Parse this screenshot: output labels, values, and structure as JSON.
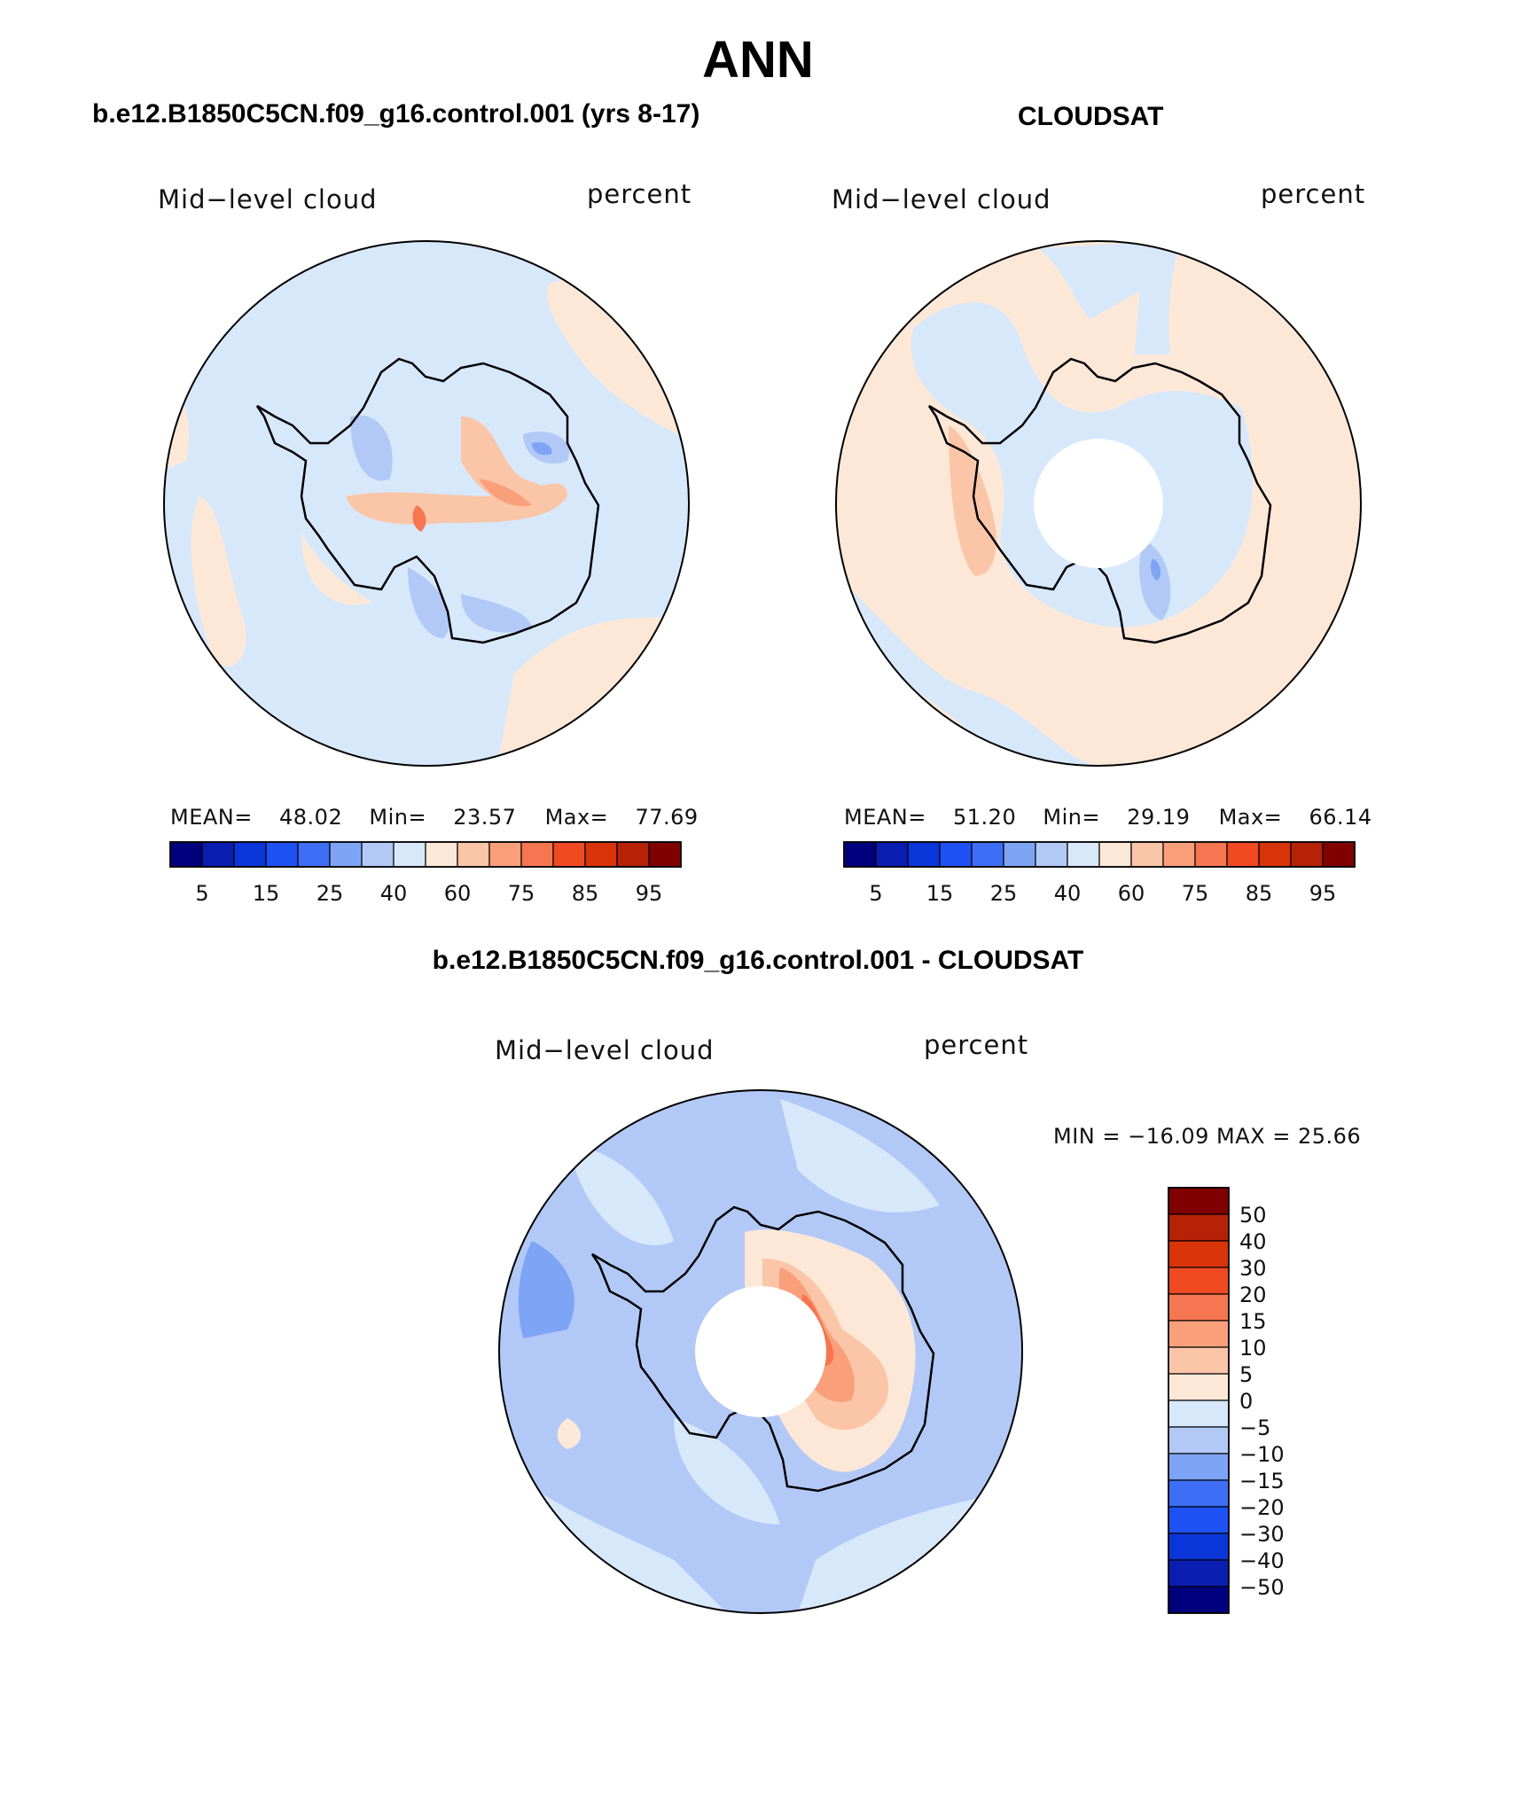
{
  "title": "ANN",
  "colors": {
    "abs_levels": [
      "#00007f",
      "#0a1db1",
      "#0a36d9",
      "#1e52f5",
      "#3d6ef5",
      "#7ea4f5",
      "#b2c9f7",
      "#d7e8fb",
      "#fde8d7",
      "#fbc5a8",
      "#f9a07b",
      "#f57650",
      "#f04a23",
      "#d93309",
      "#b52206",
      "#800000"
    ],
    "diff_levels": [
      "#00007f",
      "#0a1db1",
      "#0a36d9",
      "#1e52f5",
      "#3d6ef5",
      "#7ea4f5",
      "#b2c9f7",
      "#d7e8fb",
      "#fde8d7",
      "#fbc5a8",
      "#f9a07b",
      "#f57650",
      "#f04a23",
      "#d93309",
      "#b52206",
      "#800000"
    ],
    "land_outline": "#000000"
  },
  "panels": [
    {
      "name": "model",
      "title": "b.e12.B1850C5CN.f09_g16.control.001 (yrs 8-17)",
      "variable": "Mid−level cloud",
      "units": "percent",
      "mean_label": "MEAN=",
      "mean": "48.02",
      "min_label": "Min=",
      "min": "23.57",
      "max_label": "Max=",
      "max": "77.69",
      "colorbar_labels": [
        "5",
        "15",
        "25",
        "40",
        "60",
        "75",
        "85",
        "95"
      ]
    },
    {
      "name": "obs",
      "title": "CLOUDSAT",
      "variable": "Mid−level cloud",
      "units": "percent",
      "mean_label": "MEAN=",
      "mean": "51.20",
      "min_label": "Min=",
      "min": "29.19",
      "max_label": "Max=",
      "max": "66.14",
      "colorbar_labels": [
        "5",
        "15",
        "25",
        "40",
        "60",
        "75",
        "85",
        "95"
      ]
    },
    {
      "name": "diff",
      "title": "b.e12.B1850C5CN.f09_g16.control.001 - CLOUDSAT",
      "variable": "Mid−level cloud",
      "units": "percent",
      "minmax_text": "MIN = −16.09 MAX =   25.66",
      "colorbar_labels": [
        "50",
        "40",
        "30",
        "20",
        "15",
        "10",
        "5",
        "0",
        "−5",
        "−10",
        "−15",
        "−20",
        "−30",
        "−40",
        "−50"
      ]
    }
  ]
}
